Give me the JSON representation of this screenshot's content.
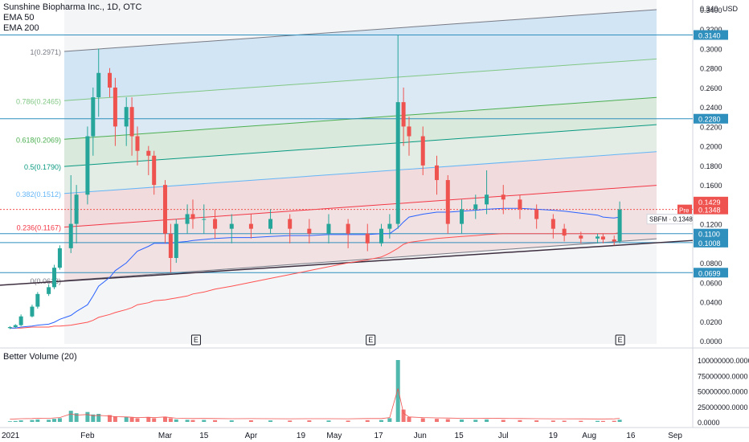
{
  "header": {
    "title": "Sunshine Biopharma Inc., 1D, OTC",
    "ema50_label": "EMA 50",
    "ema200_label": "EMA 200"
  },
  "volume_panel": {
    "title": "Better Volume (20)"
  },
  "price_axis": {
    "currency": "USD",
    "ticks": [
      "0.3400",
      "0.3200",
      "0.3000",
      "0.2800",
      "0.2600",
      "0.2400",
      "0.2200",
      "0.2000",
      "0.1800",
      "0.1600",
      "0.1400",
      "0.1200",
      "0.1000",
      "0.0800",
      "0.0600",
      "0.0400",
      "0.0200",
      "0.0000"
    ],
    "top_tick_label": "0.340"
  },
  "volume_axis": {
    "ticks": [
      "100000000.0000",
      "75000000.0000",
      "50000000.0000",
      "25000000.0000",
      "0.0000"
    ]
  },
  "time_axis": {
    "ticks": [
      "2021",
      "Feb",
      "Mar",
      "15",
      "Apr",
      "19",
      "May",
      "17",
      "Jun",
      "15",
      "Jul",
      "19",
      "Aug",
      "16",
      "Sep"
    ]
  },
  "price_badges": [
    {
      "label": "0.3140",
      "value": 0.314,
      "color": "#2f8fbd"
    },
    {
      "label": "0.2280",
      "value": 0.228,
      "color": "#2f8fbd"
    },
    {
      "label": "0.1429",
      "value": 0.1429,
      "color": "#ef5350"
    },
    {
      "label": "0.1348",
      "value": 0.1348,
      "color": "#ef5350"
    },
    {
      "label": "0.1100",
      "value": 0.11,
      "color": "#2f8fbd"
    },
    {
      "label": "0.1008",
      "value": 0.1008,
      "color": "#2f8fbd"
    },
    {
      "label": "0.0699",
      "value": 0.0699,
      "color": "#2f8fbd"
    }
  ],
  "pre_label": {
    "tag": "Pre",
    "value": "0.1348"
  },
  "symbol_label": {
    "symbol": "SBFM",
    "value": "0.1348"
  },
  "fib_levels": [
    {
      "label": "1(0.2971)",
      "value": 0.2971,
      "color": "#787b86"
    },
    {
      "label": "0.786(0.2465)",
      "value": 0.2465,
      "color": "#81c784"
    },
    {
      "label": "0.618(0.2069)",
      "value": 0.2069,
      "color": "#4caf50"
    },
    {
      "label": "0.5(0.1790)",
      "value": 0.179,
      "color": "#089981"
    },
    {
      "label": "0.382(0.1512)",
      "value": 0.1512,
      "color": "#64b5f6"
    },
    {
      "label": "0.236(0.1167)",
      "value": 0.1167,
      "color": "#f23645"
    },
    {
      "label": "0(0.0618)",
      "value": 0.0618,
      "color": "#787b86"
    }
  ],
  "earnings_markers": [
    "E",
    "E",
    "E"
  ],
  "colors": {
    "up": "#26a69a",
    "down": "#ef5350",
    "ema50": "#2962ff",
    "ema200": "#ff5252",
    "hline": "#2f8fbd",
    "trend": "#3d2e3f",
    "grid": "#e0e3eb"
  },
  "chart_data": {
    "type": "candlestick",
    "title": "Sunshine Biopharma Inc., 1D, OTC",
    "xlabel": "",
    "ylabel": "",
    "ylim": [
      0.0,
      0.34
    ],
    "volume_ylim": [
      0,
      100000000
    ],
    "x": [
      "2021-01-04",
      "2021-01-06",
      "2021-01-08",
      "2021-01-12",
      "2021-01-14",
      "2021-01-18",
      "2021-01-20",
      "2021-01-22",
      "2021-01-26",
      "2021-01-28",
      "2021-02-01",
      "2021-02-03",
      "2021-02-05",
      "2021-02-09",
      "2021-02-11",
      "2021-02-15",
      "2021-02-17",
      "2021-02-19",
      "2021-02-23",
      "2021-02-25",
      "2021-03-01",
      "2021-03-03",
      "2021-03-05",
      "2021-03-09",
      "2021-03-11",
      "2021-03-15",
      "2021-03-19",
      "2021-03-25",
      "2021-04-01",
      "2021-04-08",
      "2021-04-15",
      "2021-04-22",
      "2021-04-29",
      "2021-05-06",
      "2021-05-13",
      "2021-05-18",
      "2021-05-21",
      "2021-05-24",
      "2021-05-26",
      "2021-05-28",
      "2021-06-02",
      "2021-06-07",
      "2021-06-11",
      "2021-06-16",
      "2021-06-21",
      "2021-06-25",
      "2021-07-01",
      "2021-07-07",
      "2021-07-13",
      "2021-07-19",
      "2021-07-23",
      "2021-07-29",
      "2021-08-04",
      "2021-08-06",
      "2021-08-10",
      "2021-08-12"
    ],
    "open": [
      0.013,
      0.014,
      0.016,
      0.025,
      0.035,
      0.048,
      0.055,
      0.075,
      0.095,
      0.12,
      0.15,
      0.21,
      0.25,
      0.275,
      0.26,
      0.22,
      0.24,
      0.21,
      0.195,
      0.19,
      0.16,
      0.11,
      0.085,
      0.12,
      0.13,
      0.125,
      0.125,
      0.115,
      0.12,
      0.115,
      0.125,
      0.115,
      0.11,
      0.12,
      0.11,
      0.1,
      0.115,
      0.12,
      0.245,
      0.22,
      0.21,
      0.18,
      0.165,
      0.12,
      0.135,
      0.14,
      0.15,
      0.145,
      0.135,
      0.125,
      0.115,
      0.108,
      0.105,
      0.107,
      0.104,
      0.102
    ],
    "close": [
      0.014,
      0.016,
      0.025,
      0.035,
      0.048,
      0.055,
      0.075,
      0.095,
      0.12,
      0.15,
      0.21,
      0.25,
      0.275,
      0.26,
      0.22,
      0.24,
      0.21,
      0.195,
      0.19,
      0.16,
      0.11,
      0.085,
      0.12,
      0.13,
      0.125,
      0.125,
      0.115,
      0.12,
      0.115,
      0.125,
      0.115,
      0.11,
      0.12,
      0.11,
      0.1,
      0.115,
      0.12,
      0.245,
      0.22,
      0.21,
      0.18,
      0.165,
      0.12,
      0.135,
      0.14,
      0.15,
      0.145,
      0.135,
      0.125,
      0.115,
      0.108,
      0.105,
      0.107,
      0.104,
      0.102,
      0.1348
    ],
    "high": [
      0.015,
      0.017,
      0.027,
      0.037,
      0.05,
      0.058,
      0.078,
      0.098,
      0.17,
      0.16,
      0.22,
      0.26,
      0.3,
      0.28,
      0.27,
      0.25,
      0.25,
      0.22,
      0.2,
      0.195,
      0.165,
      0.12,
      0.125,
      0.14,
      0.145,
      0.14,
      0.135,
      0.13,
      0.13,
      0.135,
      0.13,
      0.125,
      0.13,
      0.125,
      0.12,
      0.12,
      0.13,
      0.314,
      0.26,
      0.23,
      0.22,
      0.19,
      0.17,
      0.145,
      0.15,
      0.175,
      0.16,
      0.15,
      0.14,
      0.13,
      0.12,
      0.112,
      0.11,
      0.11,
      0.108,
      0.143
    ],
    "low": [
      0.012,
      0.013,
      0.015,
      0.024,
      0.033,
      0.046,
      0.053,
      0.073,
      0.09,
      0.1,
      0.14,
      0.19,
      0.23,
      0.25,
      0.2,
      0.2,
      0.19,
      0.18,
      0.17,
      0.15,
      0.1,
      0.07,
      0.08,
      0.11,
      0.115,
      0.11,
      0.105,
      0.1,
      0.105,
      0.11,
      0.1,
      0.1,
      0.1,
      0.095,
      0.092,
      0.097,
      0.105,
      0.115,
      0.2,
      0.19,
      0.17,
      0.15,
      0.11,
      0.11,
      0.125,
      0.13,
      0.13,
      0.125,
      0.115,
      0.105,
      0.102,
      0.1,
      0.1,
      0.1,
      0.098,
      0.1
    ],
    "volume": [
      1000000,
      1500000,
      2500000,
      3000000,
      4000000,
      3500000,
      5000000,
      6000000,
      18000000,
      14000000,
      16000000,
      12000000,
      13000000,
      11000000,
      9000000,
      8000000,
      7000000,
      6000000,
      7000000,
      6000000,
      8000000,
      6000000,
      4000000,
      3500000,
      3000000,
      3200000,
      2800000,
      2500000,
      2600000,
      2400000,
      2200000,
      2500000,
      2300000,
      2100000,
      2800000,
      3000000,
      6000000,
      100000000,
      20000000,
      8000000,
      6000000,
      5000000,
      4500000,
      3800000,
      3500000,
      4000000,
      3200000,
      2800000,
      2500000,
      2200000,
      2000000,
      1800000,
      1700000,
      1600000,
      1800000,
      3500000
    ],
    "series": [
      {
        "name": "EMA 50",
        "values": [
          0.013,
          0.013,
          0.014,
          0.015,
          0.016,
          0.017,
          0.019,
          0.022,
          0.026,
          0.03,
          0.037,
          0.046,
          0.056,
          0.065,
          0.072,
          0.08,
          0.086,
          0.092,
          0.097,
          0.1,
          0.1,
          0.1,
          0.101,
          0.102,
          0.103,
          0.104,
          0.105,
          0.106,
          0.106,
          0.107,
          0.108,
          0.108,
          0.109,
          0.109,
          0.109,
          0.11,
          0.11,
          0.116,
          0.122,
          0.127,
          0.13,
          0.132,
          0.132,
          0.133,
          0.134,
          0.135,
          0.136,
          0.136,
          0.135,
          0.134,
          0.133,
          0.131,
          0.129,
          0.127,
          0.126,
          0.127
        ]
      },
      {
        "name": "EMA 200",
        "values": [
          0.013,
          0.013,
          0.013,
          0.014,
          0.014,
          0.014,
          0.015,
          0.015,
          0.016,
          0.017,
          0.019,
          0.021,
          0.024,
          0.027,
          0.029,
          0.032,
          0.034,
          0.037,
          0.039,
          0.041,
          0.042,
          0.043,
          0.044,
          0.046,
          0.048,
          0.05,
          0.053,
          0.056,
          0.06,
          0.064,
          0.068,
          0.072,
          0.076,
          0.08,
          0.083,
          0.086,
          0.09,
          0.095,
          0.099,
          0.101,
          0.103,
          0.105,
          0.106,
          0.107,
          0.108,
          0.109,
          0.11,
          0.11,
          0.11,
          0.11,
          0.11,
          0.11,
          0.11,
          0.11,
          0.11,
          0.111
        ]
      }
    ],
    "horizontal_levels": [
      0.314,
      0.228,
      0.1429,
      0.11,
      0.1008,
      0.0699
    ],
    "grid": false,
    "legend": "top-left"
  }
}
